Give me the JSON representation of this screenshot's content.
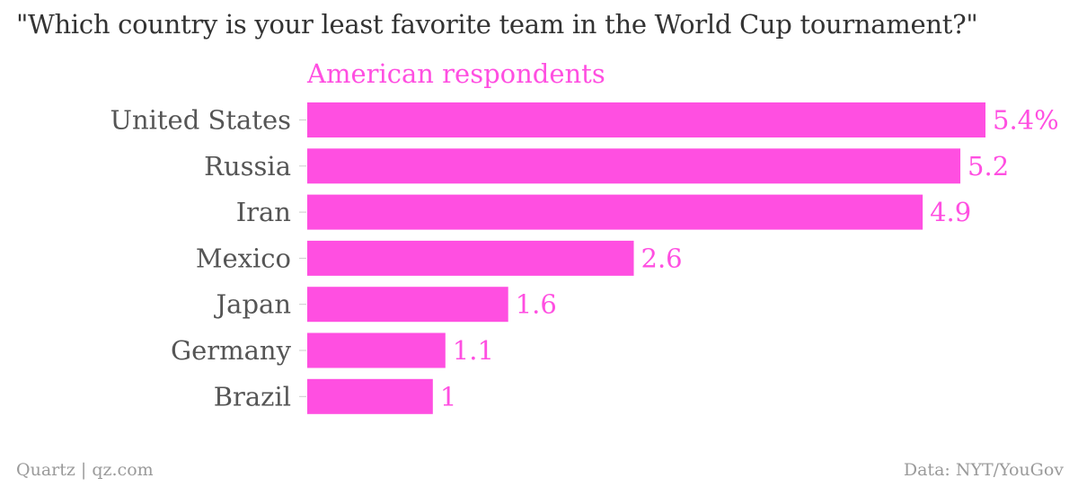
{
  "title": "\"Which country is your least favorite team in the World Cup tournament?\"",
  "footer": {
    "source": "Quartz | qz.com",
    "credit": "Data: NYT/YouGov"
  },
  "colors": {
    "bar": "#ff4fe1",
    "series_label": "#ff4fe1",
    "value_label": "#ff4fe1",
    "category_label": "#555555",
    "tick": "#cccccc"
  },
  "chart_data": {
    "type": "bar",
    "orientation": "horizontal",
    "series": [
      {
        "name": "American respondents",
        "values": [
          5.4,
          5.2,
          4.9,
          2.6,
          1.6,
          1.1,
          1.0
        ]
      }
    ],
    "categories": [
      "United States",
      "Russia",
      "Iran",
      "Mexico",
      "Japan",
      "Germany",
      "Brazil"
    ],
    "value_labels": [
      "5.4%",
      "5.2",
      "4.9",
      "2.6",
      "1.6",
      "1.1",
      "1"
    ],
    "xlim": [
      0,
      5.4
    ],
    "unit": "%",
    "grid": false,
    "legend": "none"
  }
}
